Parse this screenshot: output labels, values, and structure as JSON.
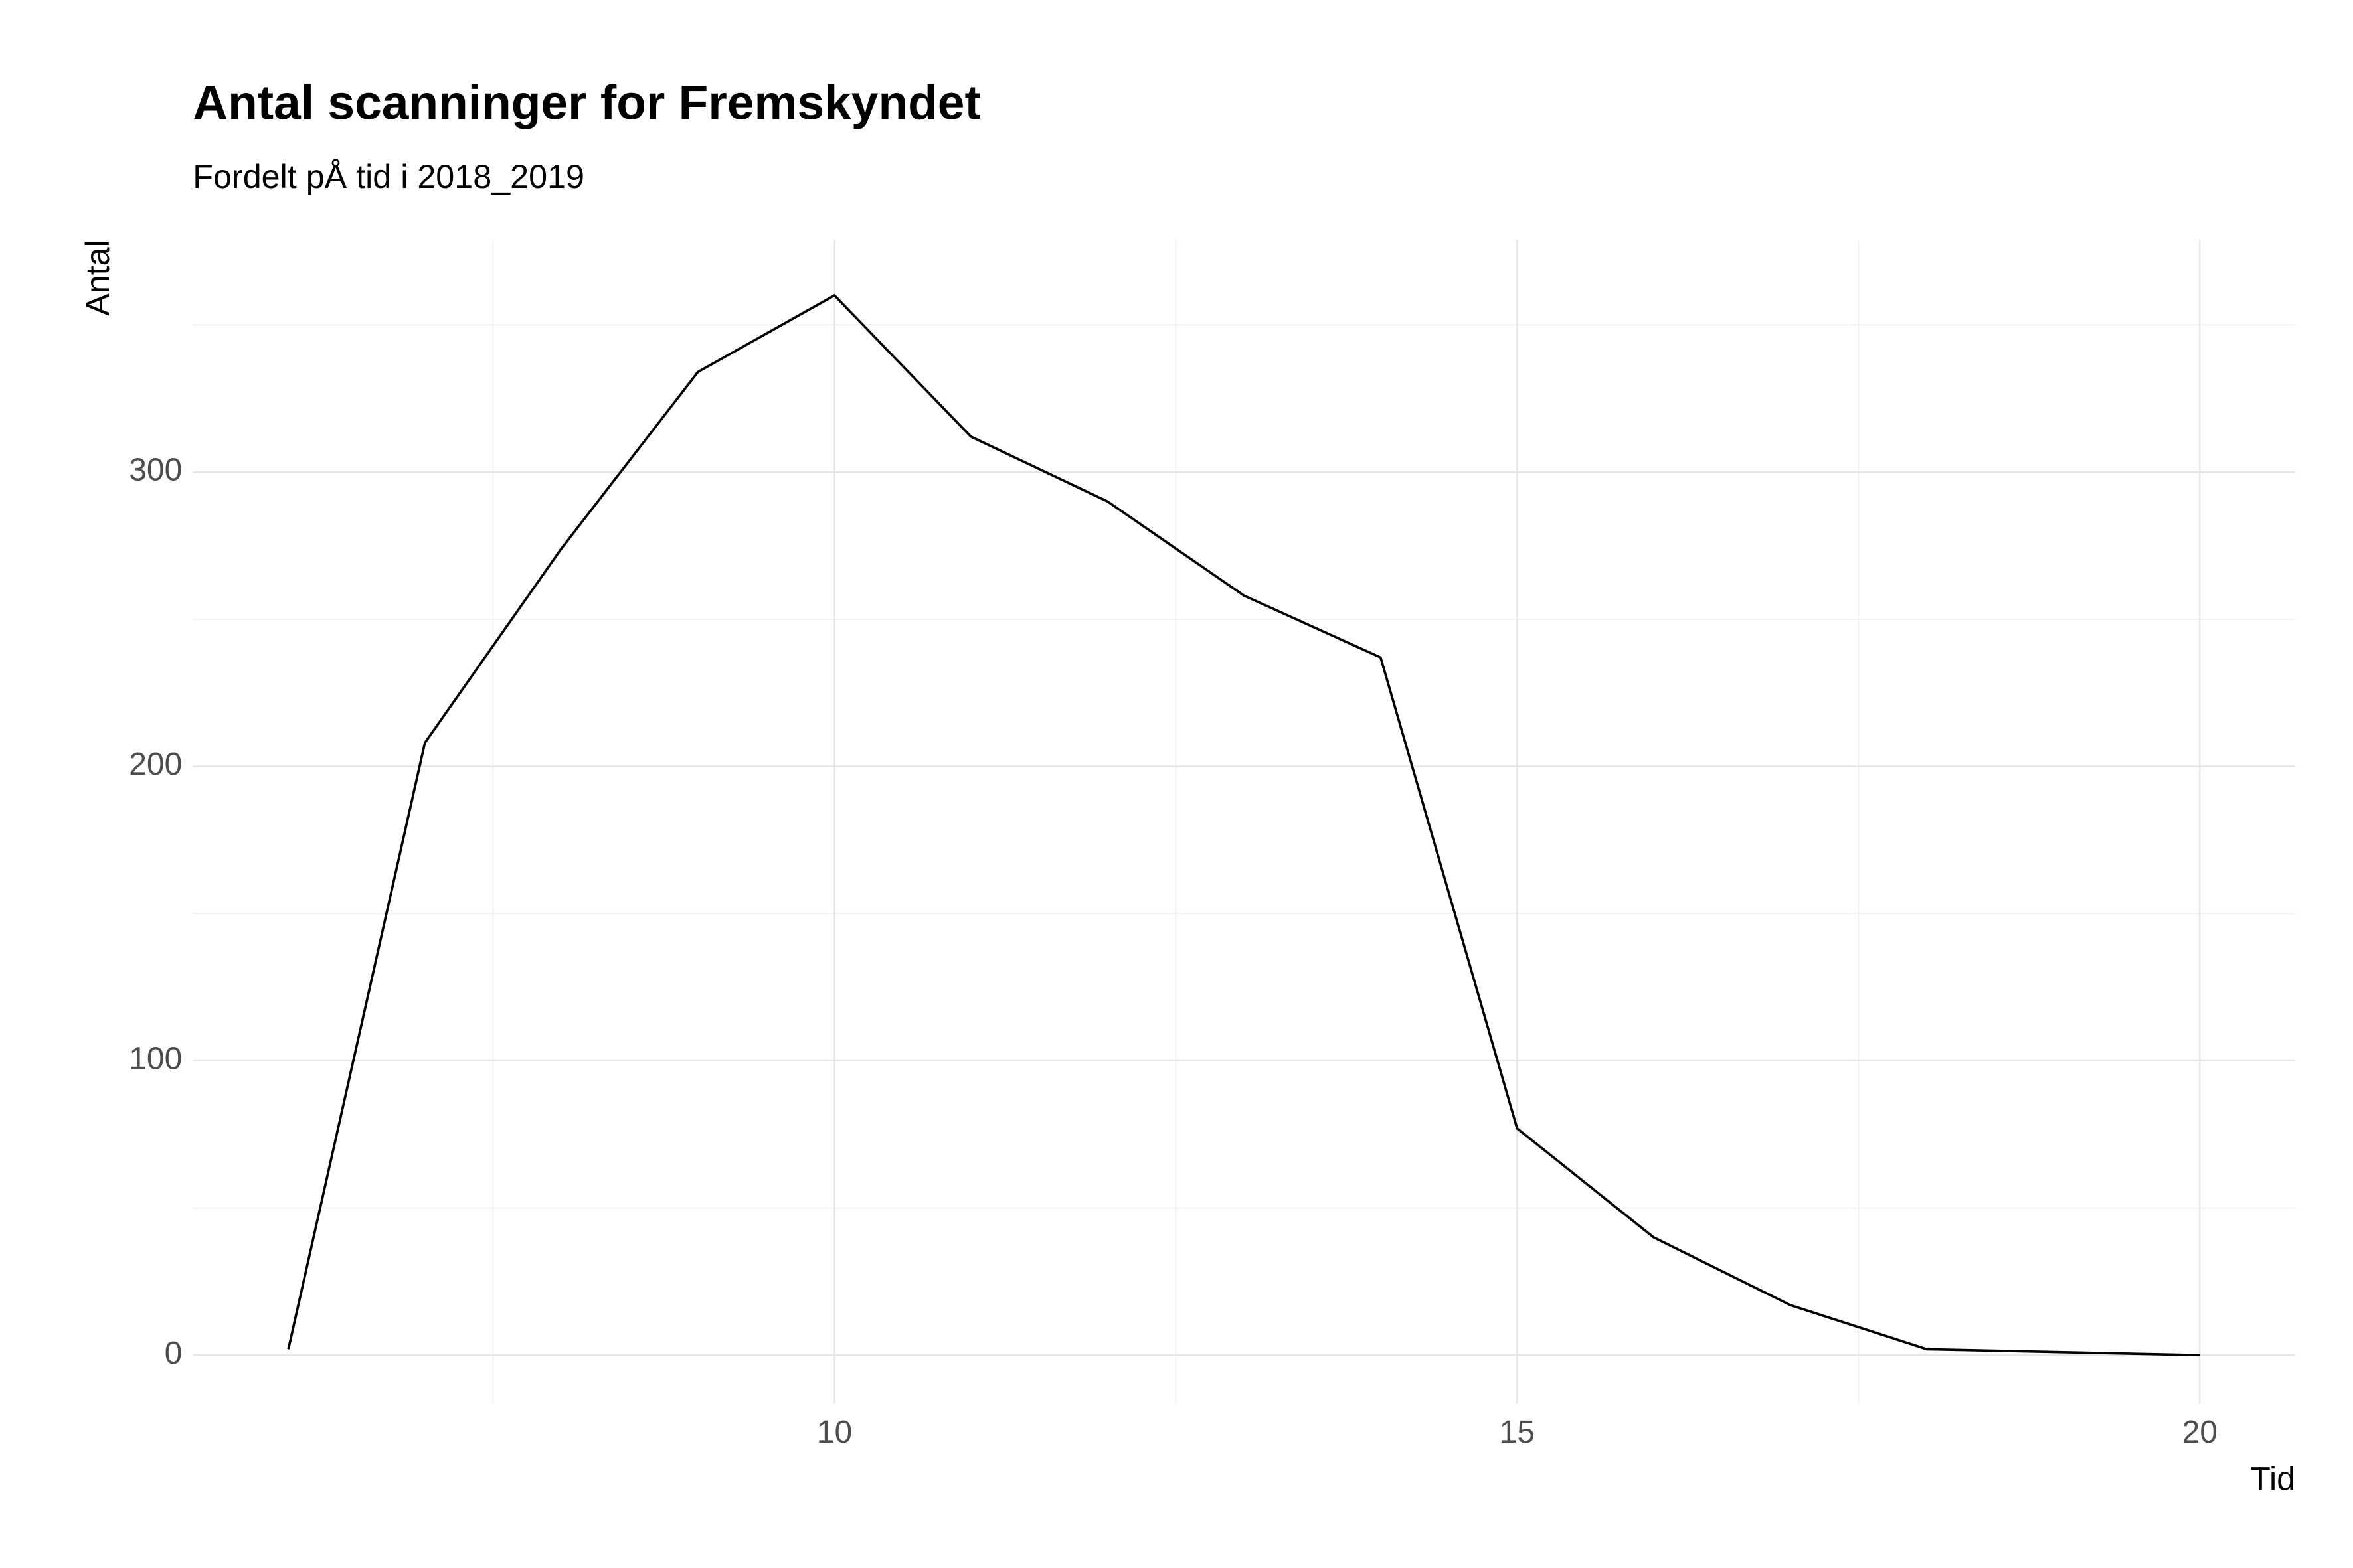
{
  "chart_data": {
    "type": "line",
    "title": "Antal scanninger for Fremskyndet",
    "subtitle": "Fordelt pÅ tid i 2018_2019",
    "x_label": "Tid",
    "y_label": "Antal",
    "x": [
      6,
      7,
      8,
      9,
      10,
      11,
      12,
      13,
      14,
      15,
      16,
      17,
      18,
      19,
      20
    ],
    "series": [
      {
        "name": "Antal",
        "color": "#000000",
        "values": [
          2,
          208,
          274,
          334,
          360,
          312,
          290,
          258,
          237,
          77,
          40,
          17,
          2,
          1,
          0
        ]
      }
    ],
    "xlim": [
      5.3,
      20.7
    ],
    "ylim": [
      -16.5,
      378.9
    ],
    "xticks": [
      10,
      15,
      20
    ],
    "yticks": [
      0,
      100,
      200,
      300
    ],
    "x_minor_grid": [
      7.5,
      12.5,
      17.5
    ],
    "y_minor_grid": [
      50,
      150,
      250,
      350
    ],
    "grid": true
  }
}
